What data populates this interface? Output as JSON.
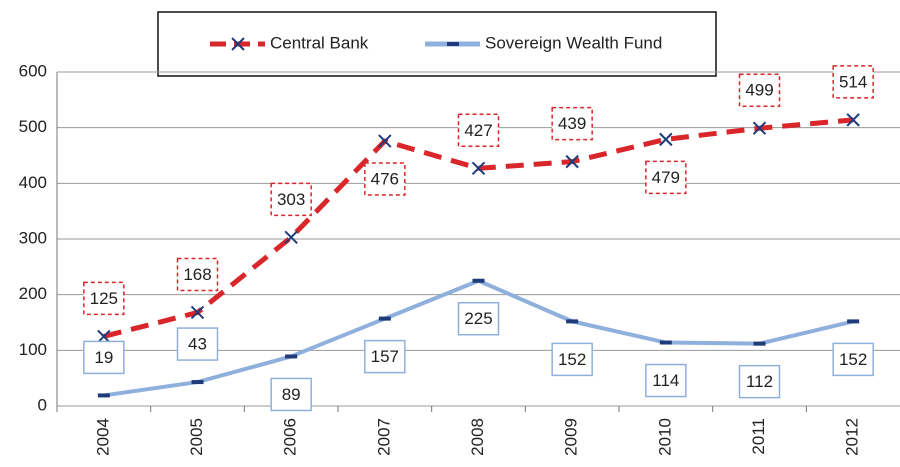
{
  "chart_data": {
    "type": "line",
    "categories": [
      "2004",
      "2005",
      "2006",
      "2007",
      "2008",
      "2009",
      "2010",
      "2011",
      "2012"
    ],
    "series": [
      {
        "name": "Central Bank",
        "color": "#d9262b",
        "values": [
          125,
          168,
          303,
          476,
          427,
          439,
          479,
          499,
          514
        ]
      },
      {
        "name": "Sovereign Wealth Fund",
        "color": "#8fb0dc",
        "values": [
          19,
          43,
          89,
          157,
          225,
          152,
          114,
          112,
          152
        ]
      }
    ],
    "ylim": [
      0,
      600
    ],
    "yticks": [
      0,
      100,
      200,
      300,
      400,
      500,
      600
    ],
    "grid": true,
    "legend": "top"
  }
}
